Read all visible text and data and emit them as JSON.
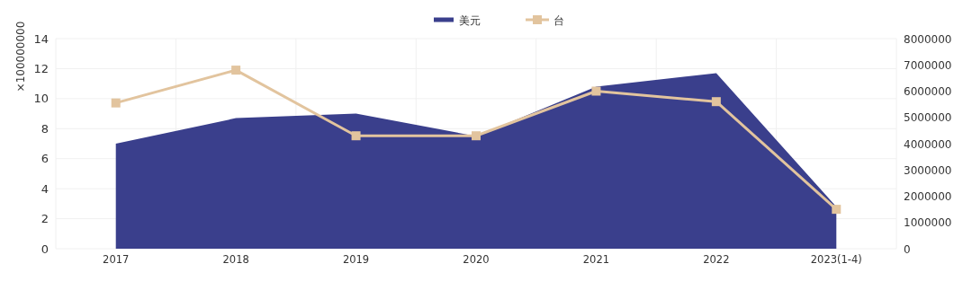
{
  "chart_data": {
    "type": "area",
    "ylabel": "×100000000",
    "categories": [
      "2017",
      "2018",
      "2019",
      "2020",
      "2021",
      "2022",
      "2023(1-4)"
    ],
    "series": [
      {
        "name": "美元",
        "color": "#3a3f8c",
        "values": [
          7.0,
          8.7,
          9.0,
          7.5,
          10.8,
          11.7,
          2.8
        ]
      },
      {
        "name": "台",
        "type": "line",
        "axis": "y2",
        "color": "#e2c49e",
        "marker": "square",
        "values": [
          5550000,
          6800000,
          4300000,
          4300000,
          6000000,
          5600000,
          1500000
        ]
      }
    ],
    "ylim": [
      0,
      14
    ],
    "yticks": [
      0,
      2,
      4,
      6,
      8,
      10,
      12,
      14
    ],
    "y2lim": [
      0,
      8000000
    ],
    "y2ticks": [
      0,
      1000000,
      2000000,
      3000000,
      4000000,
      5000000,
      6000000,
      7000000,
      8000000
    ],
    "grid": true,
    "legend": "top"
  }
}
